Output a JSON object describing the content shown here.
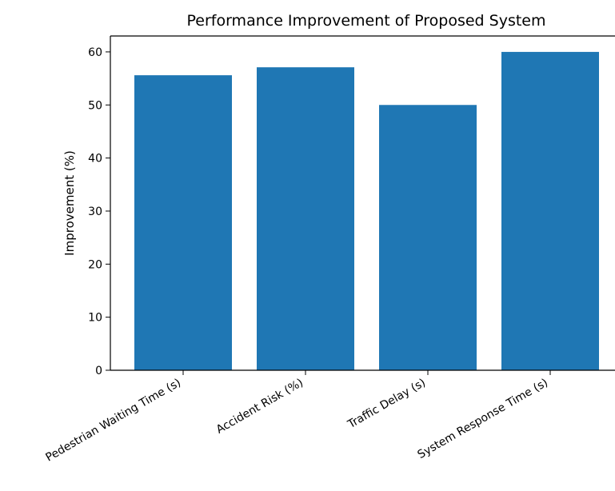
{
  "chart_data": {
    "type": "bar",
    "title": "Performance Improvement of Proposed System",
    "xlabel": "",
    "ylabel": "Improvement (%)",
    "categories": [
      "Pedestrian Waiting Time (s)",
      "Accident Risk (%)",
      "Traffic Delay (s)",
      "System Response Time (s)"
    ],
    "values": [
      55.6,
      57.1,
      50.0,
      60.0
    ],
    "ylim": [
      0,
      63
    ],
    "yticks": [
      0,
      10,
      20,
      30,
      40,
      50,
      60
    ],
    "grid": false,
    "bar_color": "#1f77b4"
  }
}
